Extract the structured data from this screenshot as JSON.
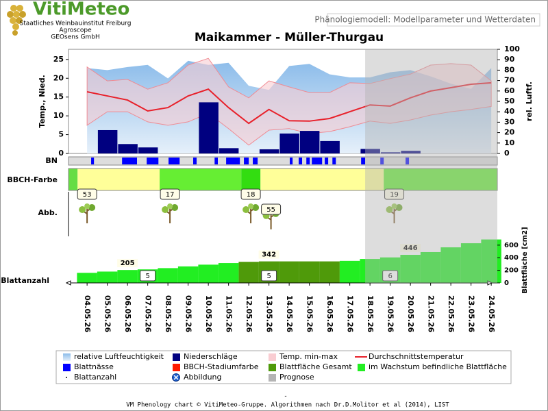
{
  "header": {
    "brand": "VitiMeteo",
    "lines": [
      "Staatliches Weinbauinstitut Freiburg",
      "Agroscope",
      "GEOsens GmbH"
    ],
    "page_title": "Phänologiemodell: Modellparameter und Wetterdaten"
  },
  "chart_data": {
    "type": "phenology",
    "title": "Maikammer - Müller-Thurgau",
    "categories": [
      "04.05.26",
      "05.05.26",
      "06.05.26",
      "07.05.26",
      "08.05.26",
      "09.05.26",
      "10.05.26",
      "11.05.26",
      "12.05.26",
      "13.05.26",
      "14.05.26",
      "15.05.26",
      "16.05.26",
      "17.05.26",
      "18.05.26",
      "19.05.26",
      "20.05.26",
      "21.05.26",
      "22.05.26",
      "23.05.26",
      "24.05.26"
    ],
    "xlim": [
      -0.92,
      20.3
    ],
    "ylabel": "Temp., Nied.",
    "ylim": [
      0,
      27.7
    ],
    "yticks": [
      0,
      5,
      10,
      15,
      20,
      25
    ],
    "y2label": "rel. Luftf.",
    "y2lim": [
      0,
      100
    ],
    "y2ticks": [
      0,
      10,
      20,
      30,
      40,
      50,
      60,
      70,
      80,
      90,
      100
    ],
    "series": [
      {
        "name": "relative Luftfeuchtigkeit",
        "color": "#8cbcea",
        "axis": "y2",
        "kind": "area",
        "values": [
          82,
          80,
          83,
          85,
          72,
          89,
          85,
          87,
          65,
          61,
          84,
          86,
          76,
          73,
          73,
          78,
          80,
          74,
          67,
          62,
          82
        ]
      },
      {
        "name": "Niederschläge",
        "color": "#000080",
        "kind": "bar",
        "values": [
          0,
          6.2,
          2.5,
          1.6,
          0,
          0,
          13.6,
          1.4,
          0,
          1.1,
          5.3,
          6.0,
          3.3,
          0,
          1.2,
          0.3,
          0.7,
          0,
          0,
          0,
          0
        ]
      },
      {
        "name": "Temp. min-max",
        "color": "#f9cdd2",
        "kind": "band",
        "high": [
          23,
          19.3,
          19.7,
          17.1,
          18.8,
          23.5,
          25.3,
          17.7,
          14.8,
          19.3,
          17.7,
          16.2,
          16.2,
          18.8,
          18.6,
          19.9,
          21.1,
          23.5,
          23.9,
          23.5,
          19.3
        ],
        "low": [
          7.5,
          11.1,
          11.1,
          8.4,
          7.5,
          8.4,
          10.7,
          6.6,
          2.2,
          6.2,
          6.6,
          5.3,
          5.8,
          7.1,
          8.6,
          8.0,
          8.9,
          10.2,
          11.1,
          11.7,
          12.5
        ]
      },
      {
        "name": "Durchschnittstemperatur",
        "color": "#e8202a",
        "kind": "line",
        "values": [
          16.4,
          15.3,
          14.2,
          11.3,
          12.2,
          15.3,
          17.1,
          12.2,
          8.0,
          11.7,
          8.7,
          8.6,
          9.3,
          11.1,
          12.9,
          12.6,
          14.8,
          16.6,
          17.5,
          18.4,
          18.8
        ]
      }
    ],
    "leaf_wetness": {
      "name": "Blattnässe",
      "label": "BN",
      "color": "#0000ff",
      "segments": [
        [
          0.2,
          0.34
        ],
        [
          1.73,
          2.47
        ],
        [
          2.95,
          3.53
        ],
        [
          4.03,
          4.58
        ],
        [
          5.25,
          5.42
        ],
        [
          6.31,
          6.47
        ],
        [
          6.88,
          7.56
        ],
        [
          7.76,
          8.0
        ],
        [
          8.2,
          8.44
        ],
        [
          10.03,
          10.17
        ],
        [
          10.47,
          10.64
        ],
        [
          10.85,
          11.02
        ],
        [
          11.12,
          11.63
        ],
        [
          11.76,
          11.93
        ],
        [
          12.14,
          12.31
        ],
        [
          13.56,
          13.76
        ],
        [
          14.51,
          14.68
        ],
        [
          15.76,
          15.93
        ]
      ]
    },
    "bbch": {
      "name": "BBCH-Stadiumfarbe",
      "label": "BBCH-Farbe",
      "color": "#ff1a00",
      "segments": [
        {
          "start": -0.92,
          "end": -0.47,
          "color": "#66dd44"
        },
        {
          "start": -0.47,
          "end": 3.59,
          "color": "#ffff99"
        },
        {
          "start": 3.59,
          "end": 7.63,
          "color": "#66ee33"
        },
        {
          "start": 7.63,
          "end": 8.58,
          "color": "#33dd11"
        },
        {
          "start": 8.58,
          "end": 14.68,
          "color": "#ffff99"
        },
        {
          "start": 14.68,
          "end": 20.3,
          "color": "#66ee33"
        }
      ]
    },
    "images": {
      "name": "Abbildung",
      "label": "Abb.",
      "x": [
        0,
        4.1,
        8.1,
        9.1,
        15.2
      ],
      "values": [
        53,
        17,
        18,
        55,
        19
      ]
    },
    "leaf_area": {
      "ylabel": "Blattfläche [cm2]",
      "ylim": [
        0,
        740
      ],
      "yticks": [
        0,
        200,
        400,
        600
      ],
      "series": [
        {
          "name": "Blattfläche Gesamt",
          "color": "#4f9a0a",
          "values": [
            null,
            null,
            null,
            null,
            null,
            null,
            null,
            null,
            335,
            342,
            342,
            342,
            342,
            null,
            null,
            null,
            null,
            null,
            null,
            null,
            null
          ],
          "value_labels": [
            null,
            null,
            null,
            null,
            null,
            null,
            null,
            null,
            null,
            "342",
            null,
            null,
            null,
            null,
            null,
            null,
            null,
            null,
            null,
            null,
            null
          ]
        },
        {
          "name": "im Wachstum befindliche Blattfläche",
          "color": "#22ee22",
          "values": [
            160,
            180,
            205,
            215,
            235,
            262,
            290,
            315,
            null,
            null,
            null,
            null,
            null,
            350,
            380,
            405,
            446,
            490,
            565,
            630,
            690
          ],
          "value_labels": [
            null,
            null,
            "205",
            null,
            null,
            null,
            null,
            null,
            null,
            null,
            null,
            null,
            null,
            null,
            null,
            null,
            "446",
            null,
            null,
            null,
            null
          ]
        }
      ]
    },
    "leaf_count": {
      "name": "Blattanzahl",
      "x": [
        3,
        9,
        15
      ],
      "values": [
        5,
        5,
        6
      ]
    },
    "forecast": {
      "name": "Prognose",
      "start": 13.76,
      "color": "#b4b4b4"
    }
  },
  "footer": {
    "separator": "-",
    "credit": "VM Phenology chart © VitiMeteo-Gruppe. Algorithmen nach Dr.D.Molitor et al (2014), LIST"
  }
}
